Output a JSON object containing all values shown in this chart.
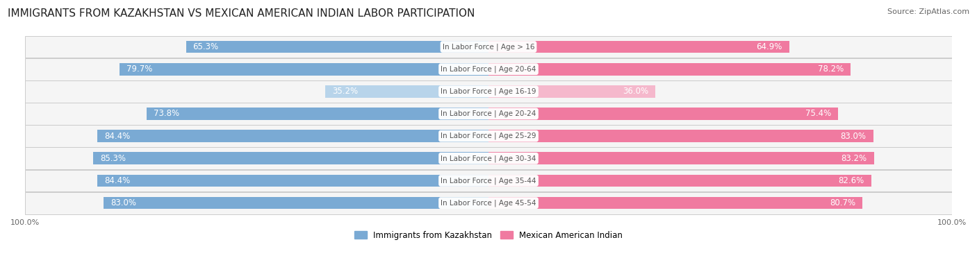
{
  "title": "IMMIGRANTS FROM KAZAKHSTAN VS MEXICAN AMERICAN INDIAN LABOR PARTICIPATION",
  "source": "Source: ZipAtlas.com",
  "categories": [
    "In Labor Force | Age > 16",
    "In Labor Force | Age 20-64",
    "In Labor Force | Age 16-19",
    "In Labor Force | Age 20-24",
    "In Labor Force | Age 25-29",
    "In Labor Force | Age 30-34",
    "In Labor Force | Age 35-44",
    "In Labor Force | Age 45-54"
  ],
  "kazakhstan_values": [
    65.3,
    79.7,
    35.2,
    73.8,
    84.4,
    85.3,
    84.4,
    83.0
  ],
  "mexican_values": [
    64.9,
    78.2,
    36.0,
    75.4,
    83.0,
    83.2,
    82.6,
    80.7
  ],
  "kazakhstan_color_full": "#7aaad4",
  "kazakhstan_color_light": "#b8d4ea",
  "mexican_color_full": "#f07aa0",
  "mexican_color_light": "#f5b8cc",
  "row_bg_color": "#f5f5f5",
  "row_border_color": "#cccccc",
  "label_color_white": "#ffffff",
  "label_color_dark": "#555555",
  "center_label_color": "#555555",
  "max_value": 100.0,
  "legend_kazakhstan": "Immigrants from Kazakhstan",
  "legend_mexican": "Mexican American Indian",
  "title_fontsize": 11,
  "source_fontsize": 8,
  "bar_label_fontsize": 8.5,
  "category_fontsize": 7.5,
  "legend_fontsize": 8.5,
  "axis_label_fontsize": 8
}
